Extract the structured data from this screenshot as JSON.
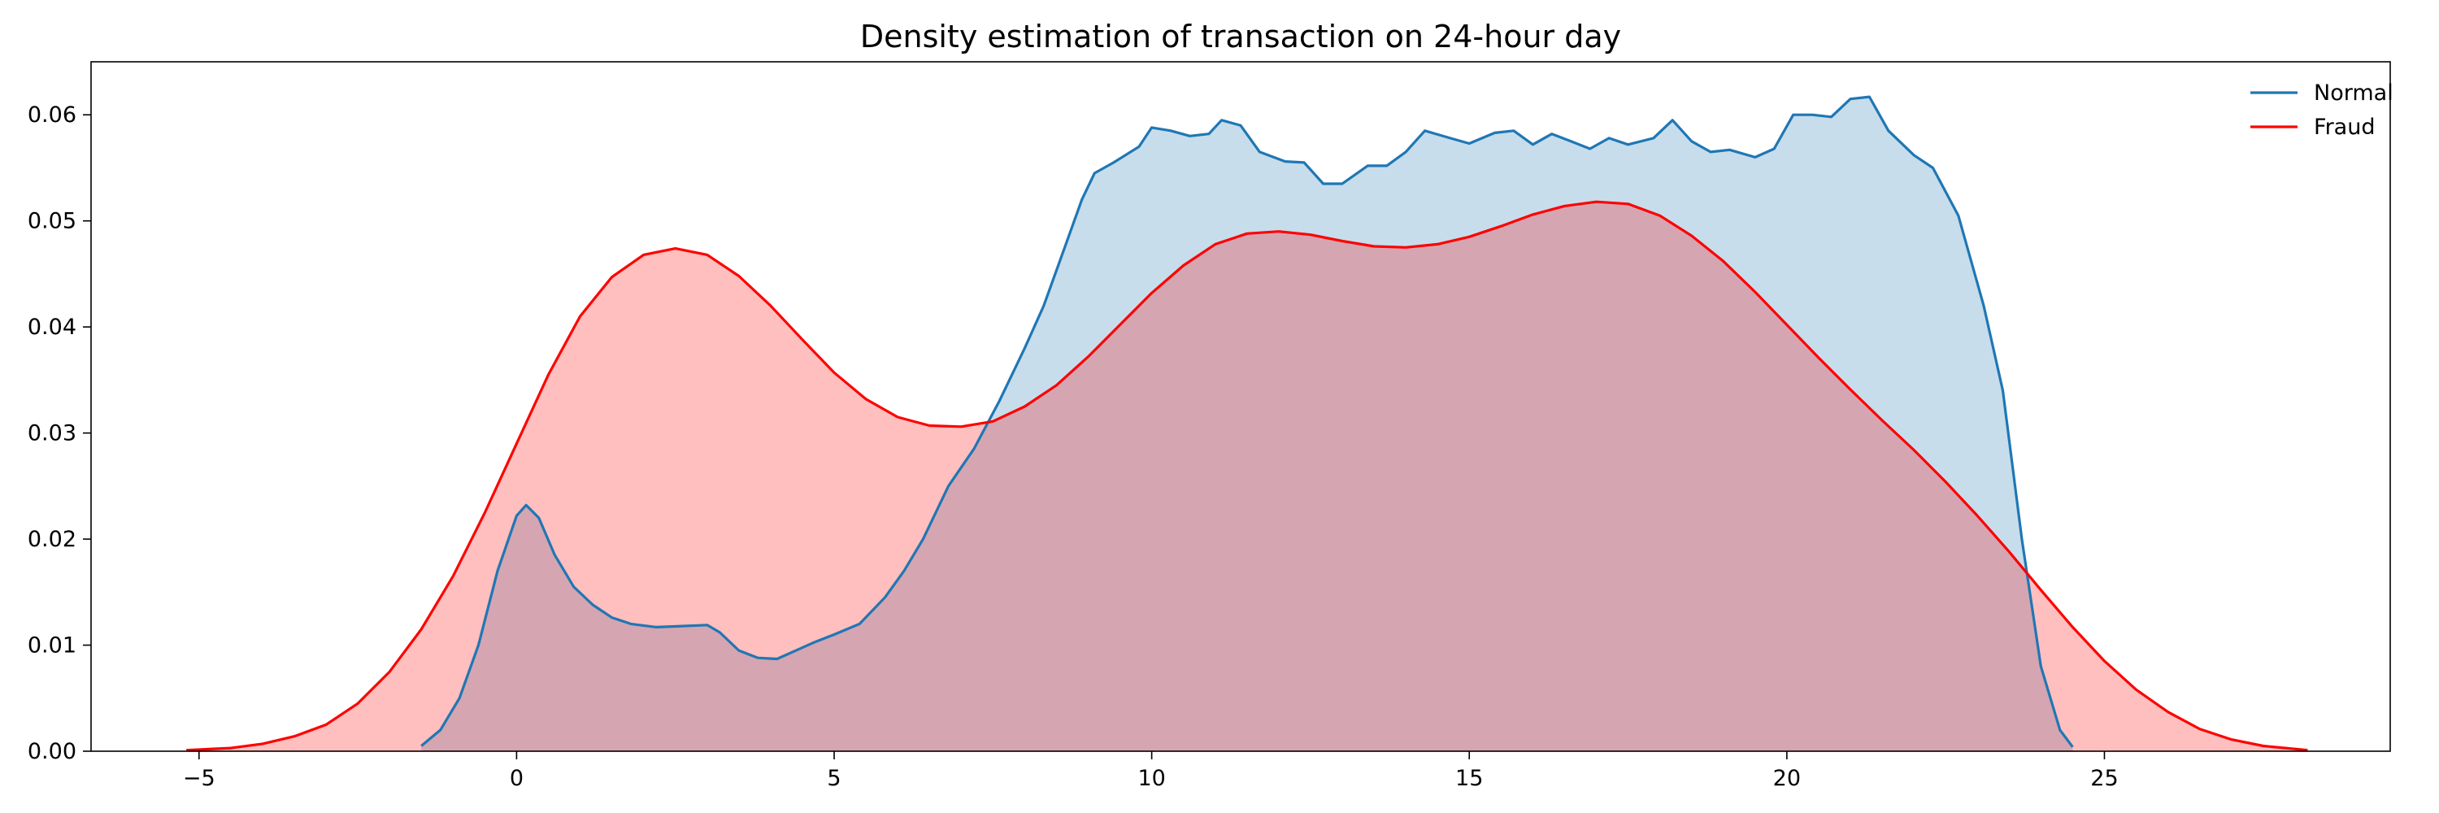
{
  "chart_data": {
    "type": "area",
    "title": "Density estimation of transaction on 24-hour day",
    "xlabel": "",
    "ylabel": "",
    "xlim": [
      -6.7,
      29.5
    ],
    "ylim": [
      0,
      0.065
    ],
    "x_ticks": [
      -5,
      0,
      5,
      10,
      15,
      20,
      25
    ],
    "x_tick_labels": [
      "−5",
      "0",
      "5",
      "10",
      "15",
      "20",
      "25"
    ],
    "y_ticks": [
      0,
      0.01,
      0.02,
      0.03,
      0.04,
      0.05,
      0.06
    ],
    "y_tick_labels": [
      "0.00",
      "0.01",
      "0.02",
      "0.03",
      "0.04",
      "0.05",
      "0.06"
    ],
    "grid": false,
    "legend_position": "top-right",
    "series": [
      {
        "name": "Normal",
        "color": "#1f77b4",
        "fill": "#1f77b4",
        "fill_opacity": 0.25,
        "x": [
          -1.5,
          -1.2,
          -0.9,
          -0.6,
          -0.3,
          0.0,
          0.15,
          0.35,
          0.6,
          0.9,
          1.2,
          1.5,
          1.8,
          2.2,
          2.6,
          3.0,
          3.2,
          3.5,
          3.8,
          4.1,
          4.4,
          4.7,
          5.0,
          5.4,
          5.8,
          6.1,
          6.4,
          6.8,
          7.2,
          7.6,
          8.0,
          8.3,
          8.6,
          8.9,
          9.1,
          9.4,
          9.8,
          10.0,
          10.3,
          10.6,
          10.9,
          11.1,
          11.4,
          11.7,
          12.1,
          12.4,
          12.7,
          13.0,
          13.4,
          13.7,
          14.0,
          14.3,
          14.7,
          15.0,
          15.4,
          15.7,
          16.0,
          16.3,
          16.6,
          16.9,
          17.2,
          17.5,
          17.9,
          18.2,
          18.5,
          18.8,
          19.1,
          19.5,
          19.8,
          20.1,
          20.4,
          20.7,
          21.0,
          21.3,
          21.6,
          22.0,
          22.3,
          22.7,
          23.1,
          23.4,
          23.7,
          24.0,
          24.3,
          24.5
        ],
        "y": [
          0.0005,
          0.002,
          0.005,
          0.01,
          0.017,
          0.0222,
          0.0232,
          0.022,
          0.0185,
          0.0155,
          0.0138,
          0.0126,
          0.012,
          0.0117,
          0.0118,
          0.0119,
          0.0112,
          0.0095,
          0.0088,
          0.0087,
          0.0095,
          0.0103,
          0.011,
          0.012,
          0.0145,
          0.017,
          0.02,
          0.025,
          0.0285,
          0.033,
          0.038,
          0.042,
          0.047,
          0.052,
          0.0545,
          0.0555,
          0.057,
          0.0588,
          0.0585,
          0.058,
          0.0582,
          0.0595,
          0.059,
          0.0565,
          0.0556,
          0.0555,
          0.0535,
          0.0535,
          0.0552,
          0.0552,
          0.0565,
          0.0585,
          0.0578,
          0.0573,
          0.0583,
          0.0585,
          0.0572,
          0.0582,
          0.0575,
          0.0568,
          0.0578,
          0.0572,
          0.0578,
          0.0595,
          0.0575,
          0.0565,
          0.0567,
          0.056,
          0.0568,
          0.06,
          0.06,
          0.0598,
          0.0615,
          0.0617,
          0.0585,
          0.0562,
          0.055,
          0.0505,
          0.042,
          0.034,
          0.02,
          0.008,
          0.002,
          0.0004
        ]
      },
      {
        "name": "Fraud",
        "color": "#ff0000",
        "fill": "#ff0000",
        "fill_opacity": 0.25,
        "x": [
          -5.2,
          -4.5,
          -4.0,
          -3.5,
          -3.0,
          -2.5,
          -2.0,
          -1.5,
          -1.0,
          -0.5,
          0.0,
          0.5,
          1.0,
          1.5,
          2.0,
          2.5,
          3.0,
          3.5,
          4.0,
          4.5,
          5.0,
          5.5,
          6.0,
          6.5,
          7.0,
          7.5,
          8.0,
          8.5,
          9.0,
          9.5,
          10.0,
          10.5,
          11.0,
          11.5,
          12.0,
          12.5,
          13.0,
          13.5,
          14.0,
          14.5,
          15.0,
          15.5,
          16.0,
          16.5,
          17.0,
          17.5,
          18.0,
          18.5,
          19.0,
          19.5,
          20.0,
          20.5,
          21.0,
          21.5,
          22.0,
          22.5,
          23.0,
          23.5,
          24.0,
          24.5,
          25.0,
          25.5,
          26.0,
          26.5,
          27.0,
          27.5,
          28.2
        ],
        "y": [
          0.0001,
          0.0003,
          0.0007,
          0.0014,
          0.0025,
          0.0045,
          0.0075,
          0.0115,
          0.0165,
          0.0225,
          0.029,
          0.0355,
          0.041,
          0.0447,
          0.0468,
          0.0474,
          0.0468,
          0.0448,
          0.042,
          0.0388,
          0.0357,
          0.0332,
          0.0315,
          0.0307,
          0.0306,
          0.0311,
          0.0325,
          0.0345,
          0.0372,
          0.0402,
          0.0432,
          0.0458,
          0.0478,
          0.0488,
          0.049,
          0.0487,
          0.0481,
          0.0476,
          0.0475,
          0.0478,
          0.0485,
          0.0495,
          0.0506,
          0.0514,
          0.0518,
          0.0516,
          0.0505,
          0.0486,
          0.0462,
          0.0433,
          0.0402,
          0.0371,
          0.0341,
          0.0312,
          0.0284,
          0.0254,
          0.0222,
          0.0188,
          0.0152,
          0.0117,
          0.0085,
          0.0058,
          0.0037,
          0.0021,
          0.0011,
          0.0005,
          0.0001
        ]
      }
    ]
  }
}
